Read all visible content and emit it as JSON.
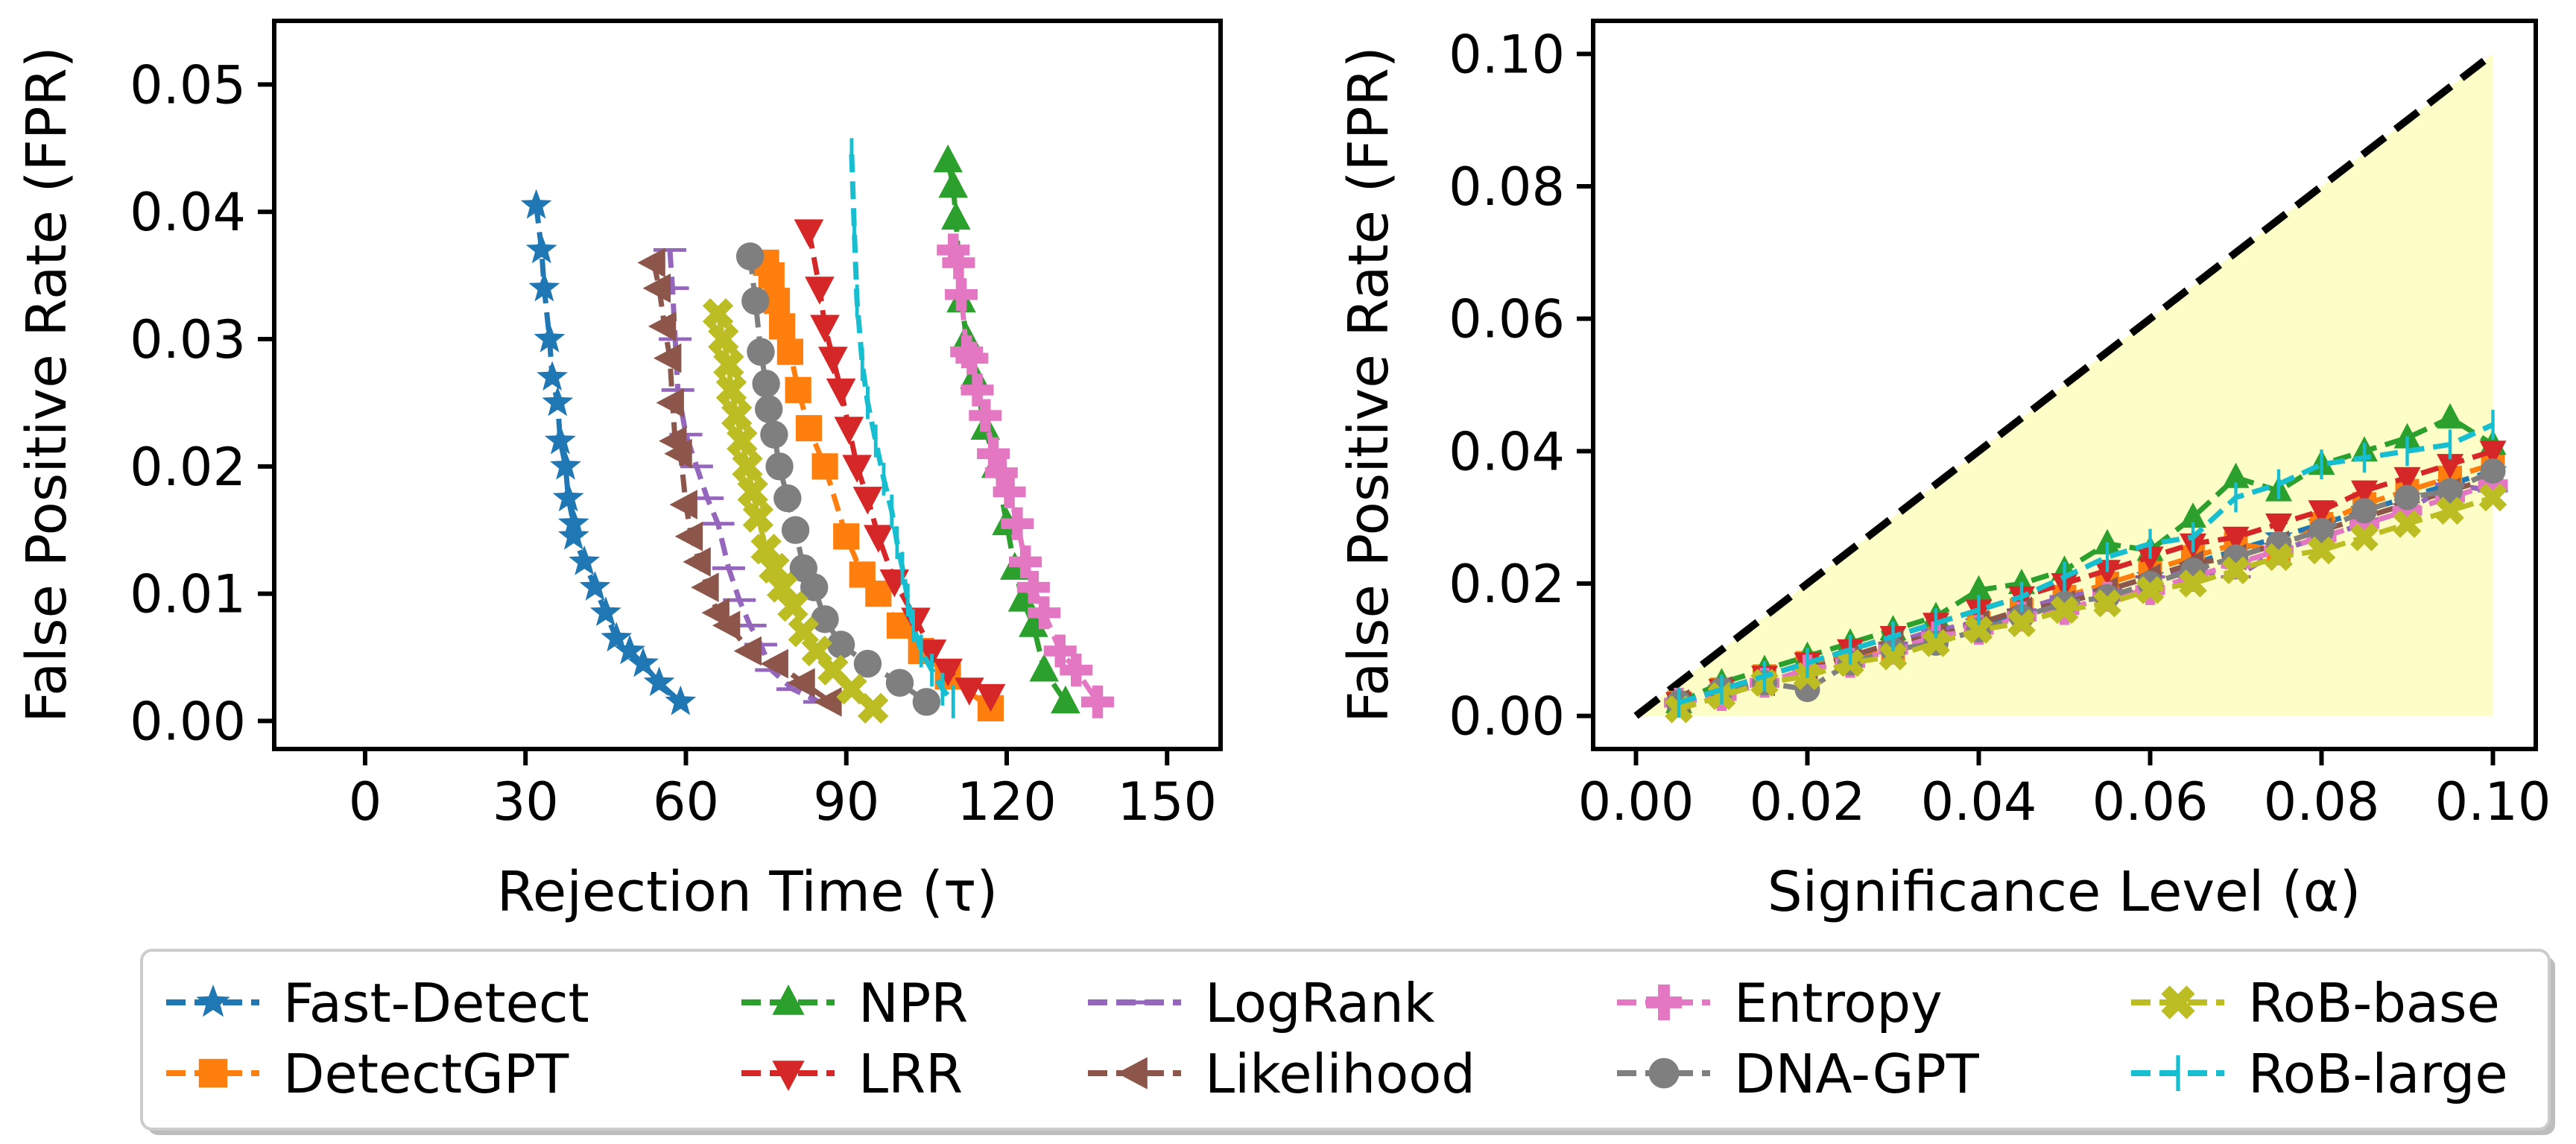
{
  "colors": {
    "Fast-Detect": "#1f77b4",
    "DetectGPT": "#ff7f0e",
    "NPR": "#2ca02c",
    "LRR": "#d62728",
    "LogRank": "#9467bd",
    "Likelihood": "#8c564b",
    "Entropy": "#e377c2",
    "DNA-GPT": "#7f7f7f",
    "RoB-base": "#bcbd22",
    "RoB-large": "#17becf",
    "reference_line": "#000000",
    "valid_region": "#fdfdc8"
  },
  "legend": {
    "placement": "bottom-center",
    "entries": [
      {
        "label": "Fast-Detect",
        "marker": "star"
      },
      {
        "label": "DetectGPT",
        "marker": "square"
      },
      {
        "label": "NPR",
        "marker": "triangle-up"
      },
      {
        "label": "LRR",
        "marker": "triangle-down"
      },
      {
        "label": "LogRank",
        "marker": "hline"
      },
      {
        "label": "Likelihood",
        "marker": "triangle-left"
      },
      {
        "label": "Entropy",
        "marker": "plus-thick"
      },
      {
        "label": "DNA-GPT",
        "marker": "circle"
      },
      {
        "label": "RoB-base",
        "marker": "x-thick"
      },
      {
        "label": "RoB-large",
        "marker": "vline"
      }
    ]
  },
  "chart_data": [
    {
      "type": "line",
      "title": "",
      "xlabel": "Rejection Time (τ)",
      "ylabel": "False Positive Rate (FPR)",
      "xlim": [
        -17,
        160
      ],
      "ylim": [
        -0.0022,
        0.055
      ],
      "xticks": [
        0,
        30,
        60,
        90,
        120,
        150
      ],
      "xtick_labels": [
        "0",
        "30",
        "60",
        "90",
        "120",
        "150"
      ],
      "yticks": [
        0,
        0.01,
        0.02,
        0.03,
        0.04,
        0.05
      ],
      "ytick_labels": [
        "0.00",
        "0.01",
        "0.02",
        "0.03",
        "0.04",
        "0.05"
      ],
      "grid": false,
      "series": [
        {
          "name": "Fast-Detect",
          "x": [
            32,
            33,
            33.5,
            34.5,
            35,
            36,
            36.5,
            37.5,
            38,
            39,
            39,
            41,
            43,
            45,
            47,
            49.5,
            52,
            55,
            59
          ],
          "y": [
            0.0405,
            0.037,
            0.034,
            0.03,
            0.027,
            0.025,
            0.022,
            0.02,
            0.0175,
            0.0155,
            0.0145,
            0.0125,
            0.0105,
            0.0085,
            0.0065,
            0.0055,
            0.0045,
            0.003,
            0.0015
          ]
        },
        {
          "name": "DetectGPT",
          "x": [
            75,
            76,
            77,
            78,
            79.5,
            81,
            83,
            86,
            90,
            93,
            96,
            100,
            104,
            109,
            117
          ],
          "y": [
            0.036,
            0.035,
            0.033,
            0.031,
            0.029,
            0.026,
            0.023,
            0.02,
            0.0145,
            0.0115,
            0.01,
            0.0075,
            0.0055,
            0.0035,
            0.001
          ]
        },
        {
          "name": "NPR",
          "x": [
            109,
            110,
            110.5,
            111.5,
            112.5,
            114,
            116,
            118,
            120,
            121.5,
            123,
            125,
            127,
            131
          ],
          "y": [
            0.044,
            0.042,
            0.0395,
            0.033,
            0.03,
            0.027,
            0.023,
            0.02,
            0.0155,
            0.012,
            0.0095,
            0.0075,
            0.004,
            0.0015
          ]
        },
        {
          "name": "LRR",
          "x": [
            83,
            85,
            86,
            87.5,
            89,
            90.5,
            92,
            94,
            96,
            99,
            103,
            106,
            109,
            113,
            117
          ],
          "y": [
            0.0385,
            0.034,
            0.031,
            0.0285,
            0.026,
            0.023,
            0.02,
            0.0175,
            0.0145,
            0.011,
            0.008,
            0.0055,
            0.004,
            0.0025,
            0.002
          ]
        },
        {
          "name": "LogRank",
          "x": [
            57,
            57.5,
            58,
            58.5,
            60,
            62,
            64,
            66,
            68,
            70,
            72,
            74,
            76,
            80,
            85
          ],
          "y": [
            0.037,
            0.034,
            0.03,
            0.026,
            0.0225,
            0.02,
            0.0175,
            0.0155,
            0.012,
            0.0095,
            0.0075,
            0.006,
            0.004,
            0.0025,
            0.0015
          ]
        },
        {
          "name": "Likelihood",
          "x": [
            54,
            55,
            56,
            57,
            57.5,
            58,
            59,
            60,
            61,
            62.5,
            64,
            66,
            68,
            72,
            77,
            82,
            87
          ],
          "y": [
            0.036,
            0.034,
            0.031,
            0.0285,
            0.025,
            0.022,
            0.021,
            0.017,
            0.0145,
            0.0125,
            0.0105,
            0.0085,
            0.0075,
            0.0055,
            0.0045,
            0.003,
            0.0015
          ]
        },
        {
          "name": "Entropy",
          "x": [
            110,
            111,
            111.5,
            112.5,
            113.5,
            114.5,
            116,
            117.5,
            119,
            120.5,
            122,
            123.5,
            125,
            127,
            130,
            133,
            137
          ],
          "y": [
            0.037,
            0.036,
            0.0335,
            0.029,
            0.0285,
            0.026,
            0.024,
            0.021,
            0.0195,
            0.018,
            0.0155,
            0.0125,
            0.0105,
            0.0085,
            0.0055,
            0.004,
            0.0015
          ]
        },
        {
          "name": "DNA-GPT",
          "x": [
            72,
            73,
            74,
            75,
            75.5,
            76.5,
            77.5,
            79,
            80.5,
            82,
            84,
            86,
            89,
            94,
            100,
            105
          ],
          "y": [
            0.0365,
            0.033,
            0.029,
            0.0265,
            0.0245,
            0.0225,
            0.02,
            0.0175,
            0.015,
            0.012,
            0.0105,
            0.008,
            0.006,
            0.0045,
            0.003,
            0.0015
          ]
        },
        {
          "name": "RoB-base",
          "x": [
            66,
            67,
            68,
            68.5,
            69.5,
            70.5,
            71.5,
            72.5,
            73.5,
            75,
            76.5,
            78,
            80,
            82,
            84.5,
            87.5,
            91,
            95
          ],
          "y": [
            0.032,
            0.03,
            0.028,
            0.026,
            0.024,
            0.022,
            0.02,
            0.018,
            0.016,
            0.0135,
            0.012,
            0.0105,
            0.009,
            0.007,
            0.0055,
            0.004,
            0.0025,
            0.001
          ]
        },
        {
          "name": "RoB-large",
          "x": [
            91,
            91.5,
            92,
            93,
            94,
            95.5,
            97,
            98.5,
            99.5,
            100.5,
            101.5,
            102.5,
            104,
            106,
            108,
            110
          ],
          "y": [
            0.0445,
            0.0385,
            0.033,
            0.028,
            0.025,
            0.022,
            0.019,
            0.0165,
            0.014,
            0.012,
            0.0095,
            0.0075,
            0.0055,
            0.004,
            0.0025,
            0.0015
          ]
        }
      ]
    },
    {
      "type": "line",
      "title": "",
      "xlabel": "Significance Level (α)",
      "ylabel": "False Positive Rate (FPR)",
      "xlim": [
        -0.005,
        0.105
      ],
      "ylim": [
        -0.005,
        0.105
      ],
      "xticks": [
        0,
        0.02,
        0.04,
        0.06,
        0.08,
        0.1
      ],
      "xtick_labels": [
        "0.00",
        "0.02",
        "0.04",
        "0.06",
        "0.08",
        "0.10"
      ],
      "yticks": [
        0,
        0.02,
        0.04,
        0.06,
        0.08,
        0.1
      ],
      "ytick_labels": [
        "0.00",
        "0.02",
        "0.04",
        "0.06",
        "0.08",
        "0.10"
      ],
      "grid": false,
      "reference_line": {
        "x": [
          0,
          0.1
        ],
        "y": [
          0,
          0.1
        ],
        "style": "dashed"
      },
      "shaded_region": {
        "x": [
          0,
          0.1
        ],
        "lower": [
          0,
          0
        ],
        "upper": [
          0,
          0.1
        ]
      },
      "x": [
        0.005,
        0.01,
        0.015,
        0.02,
        0.025,
        0.03,
        0.035,
        0.04,
        0.045,
        0.05,
        0.055,
        0.06,
        0.065,
        0.07,
        0.075,
        0.08,
        0.085,
        0.09,
        0.095,
        0.1
      ],
      "series": [
        {
          "name": "Fast-Detect",
          "y": [
            0.002,
            0.004,
            0.005,
            0.007,
            0.009,
            0.01,
            0.012,
            0.014,
            0.015,
            0.017,
            0.019,
            0.021,
            0.023,
            0.025,
            0.027,
            0.029,
            0.031,
            0.033,
            0.035,
            0.037
          ]
        },
        {
          "name": "DetectGPT",
          "y": [
            0.002,
            0.004,
            0.006,
            0.008,
            0.009,
            0.01,
            0.012,
            0.014,
            0.016,
            0.018,
            0.02,
            0.022,
            0.024,
            0.026,
            0.025,
            0.029,
            0.032,
            0.034,
            0.036,
            0.038
          ]
        },
        {
          "name": "NPR",
          "y": [
            0.002,
            0.005,
            0.007,
            0.009,
            0.011,
            0.013,
            0.015,
            0.019,
            0.02,
            0.022,
            0.026,
            0.025,
            0.03,
            0.036,
            0.034,
            0.038,
            0.04,
            0.042,
            0.045,
            0.041
          ]
        },
        {
          "name": "LRR",
          "y": [
            0.002,
            0.004,
            0.006,
            0.008,
            0.01,
            0.012,
            0.014,
            0.016,
            0.018,
            0.02,
            0.022,
            0.024,
            0.026,
            0.027,
            0.029,
            0.031,
            0.034,
            0.036,
            0.038,
            0.04
          ]
        },
        {
          "name": "LogRank",
          "y": [
            0.002,
            0.003,
            0.005,
            0.007,
            0.009,
            0.011,
            0.013,
            0.014,
            0.016,
            0.018,
            0.019,
            0.021,
            0.022,
            0.021,
            0.025,
            0.027,
            0.029,
            0.031,
            0.035,
            0.034
          ]
        },
        {
          "name": "Likelihood",
          "y": [
            0.002,
            0.004,
            0.005,
            0.007,
            0.009,
            0.011,
            0.012,
            0.014,
            0.016,
            0.017,
            0.019,
            0.021,
            0.023,
            0.024,
            0.026,
            0.028,
            0.03,
            0.032,
            0.034,
            0.036
          ]
        },
        {
          "name": "Entropy",
          "y": [
            0.002,
            0.003,
            0.005,
            0.007,
            0.008,
            0.01,
            0.012,
            0.013,
            0.015,
            0.016,
            0.018,
            0.019,
            0.021,
            0.023,
            0.025,
            0.027,
            0.029,
            0.031,
            0.033,
            0.035
          ]
        },
        {
          "name": "DNA-GPT",
          "y": [
            0.002,
            0.004,
            0.005,
            0.004,
            0.008,
            0.01,
            0.011,
            0.013,
            0.015,
            0.017,
            0.018,
            0.02,
            0.022,
            0.024,
            0.026,
            0.028,
            0.031,
            0.033,
            0.034,
            0.037
          ]
        },
        {
          "name": "RoB-base",
          "y": [
            0.001,
            0.003,
            0.005,
            0.006,
            0.008,
            0.009,
            0.011,
            0.013,
            0.014,
            0.016,
            0.017,
            0.019,
            0.02,
            0.022,
            0.024,
            0.025,
            0.027,
            0.029,
            0.031,
            0.033
          ]
        },
        {
          "name": "RoB-large",
          "y": [
            0.002,
            0.004,
            0.006,
            0.008,
            0.01,
            0.012,
            0.014,
            0.016,
            0.018,
            0.021,
            0.024,
            0.026,
            0.027,
            0.033,
            0.035,
            0.038,
            0.039,
            0.04,
            0.041,
            0.044
          ]
        }
      ]
    }
  ]
}
